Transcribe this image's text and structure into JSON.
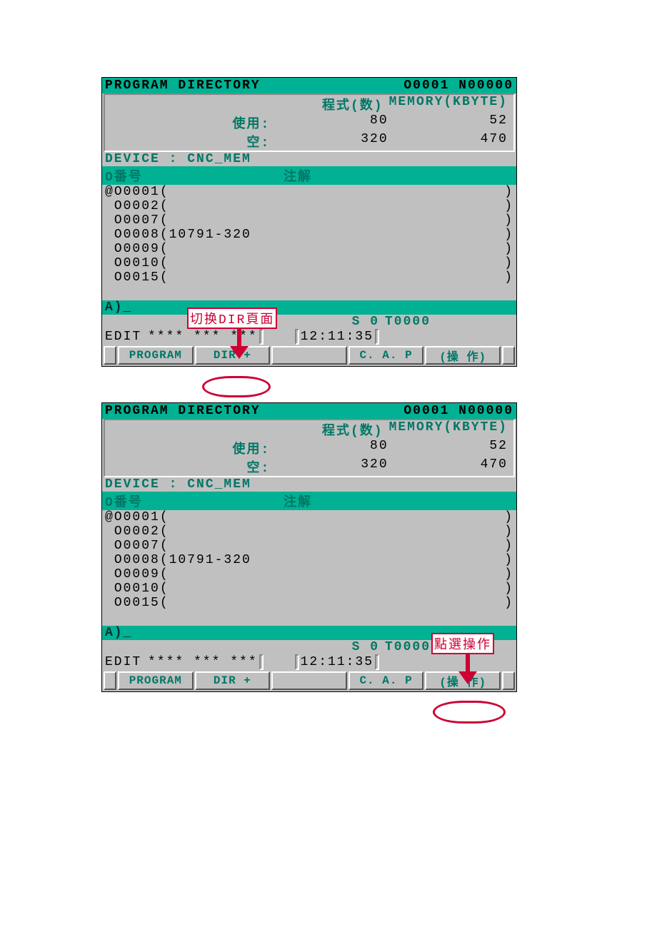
{
  "colors": {
    "teal_bg": "#00b193",
    "teal_text": "#007766",
    "panel_bg": "#c0c0c0",
    "annot_red": "#cc0033"
  },
  "title": "PROGRAM DIRECTORY",
  "title_right": "O0001 N00000",
  "col_prog": "程式(数)",
  "col_mem": "MEMORY(KBYTE)",
  "row_used": "使用:",
  "row_free": "空:",
  "used_prog": "80",
  "used_mem": "52",
  "free_prog": "320",
  "free_mem": "470",
  "device_line": "DEVICE : CNC_MEM",
  "list_h1": "O番号",
  "list_h2": "注解",
  "programs": [
    {
      "mark": "@",
      "num": "O0001",
      "comment": ""
    },
    {
      "mark": "",
      "num": "O0002",
      "comment": ""
    },
    {
      "mark": "",
      "num": "O0007",
      "comment": ""
    },
    {
      "mark": "",
      "num": "O0008",
      "comment": "10791-320"
    },
    {
      "mark": "",
      "num": "O0009",
      "comment": ""
    },
    {
      "mark": "",
      "num": "O0010",
      "comment": ""
    },
    {
      "mark": "",
      "num": "O0015",
      "comment": ""
    }
  ],
  "input_prompt": "A)_",
  "s_val": "S       0",
  "t_val1": "T0000",
  "t_val2": "T0000",
  "mode": "EDIT",
  "stars": "**** *** ***",
  "stars2": "**** *** ***",
  "time": "12:11:35",
  "sk_program": "PROGRAM",
  "sk_dir": "DIR +",
  "sk_cap": "C. A. P",
  "sk_oper": "(操 作)",
  "annot1": "切换DIR頁面",
  "annot2": "點選操作"
}
